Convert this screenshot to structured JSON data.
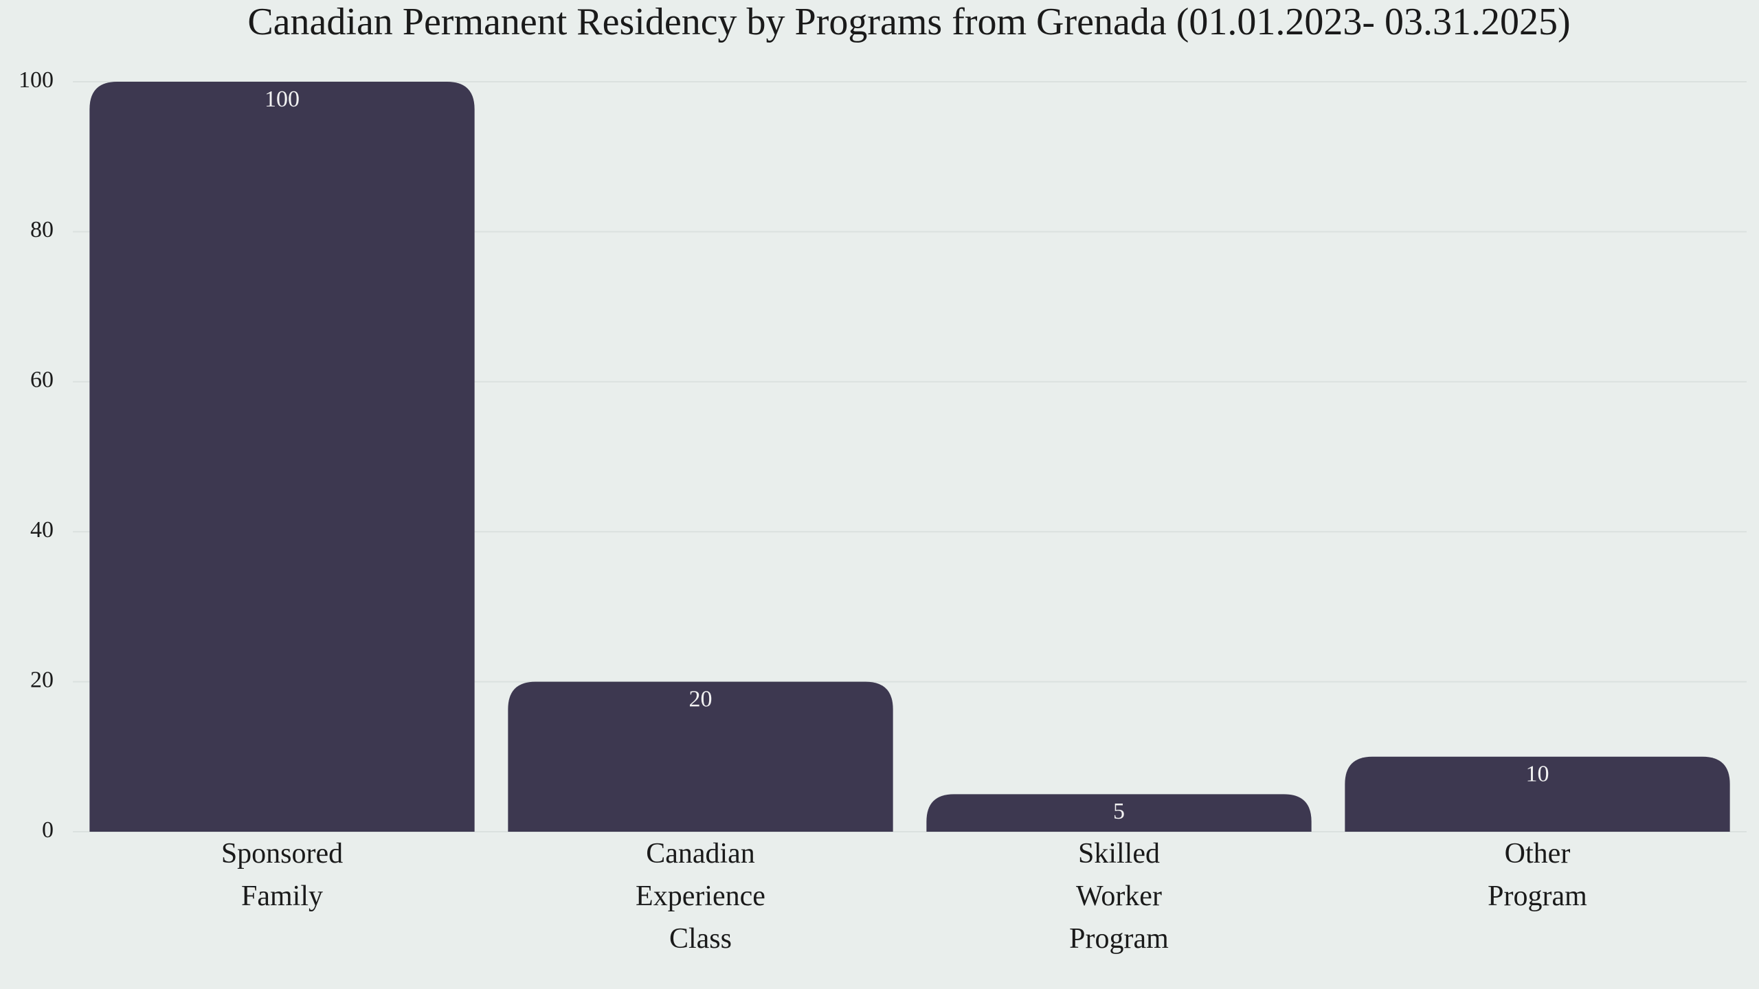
{
  "chart_data": {
    "type": "bar",
    "title": "Canadian Permanent Residency by Programs from Grenada (01.01.2023- 03.31.2025)",
    "categories": [
      "Sponsored Family",
      "Canadian Experience Class",
      "Skilled Worker Program",
      "Other Program"
    ],
    "values": [
      100,
      20,
      5,
      10
    ],
    "color": "#3d3850",
    "ylim": [
      0,
      100
    ],
    "yticks": [
      0,
      20,
      40,
      60,
      80,
      100
    ],
    "grid": true
  }
}
